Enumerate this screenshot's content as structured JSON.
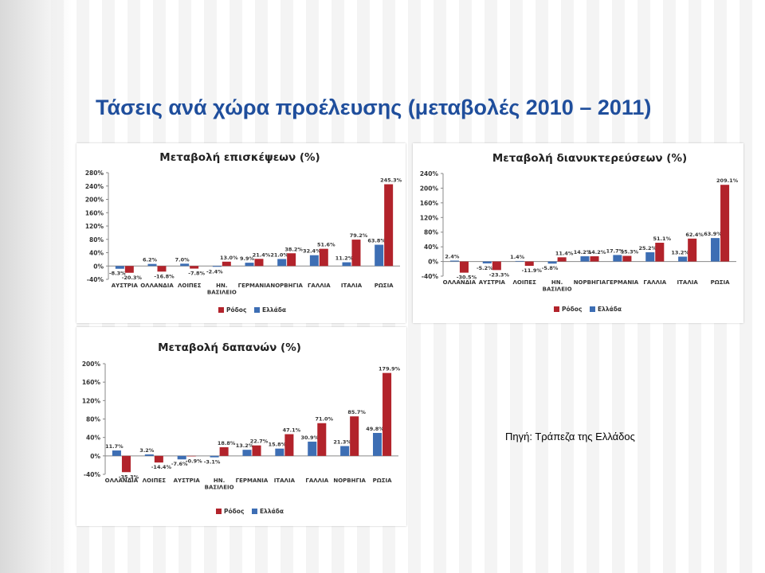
{
  "title": "Τάσεις ανά χώρα προέλευσης (μεταβολές 2010 – 2011)",
  "source": "Πηγή: Τράπεζα της Ελλάδος",
  "colors": {
    "rodos": "#b2232b",
    "ellada": "#3d6eb4",
    "title": "#1f4e9c"
  },
  "chart_data": [
    {
      "type": "bar",
      "title": "Μεταβολή επισκέψεων (%)",
      "categories": [
        "ΑΥΣΤΡΙΑ",
        "ΟΛΛΑΝΔΙΑ",
        "ΛΟΙΠΕΣ",
        "ΗΝ. ΒΑΣΙΛΕΙΟ",
        "ΓΕΡΜΑΝΙΑ",
        "ΝΟΡΒΗΓΙΑ",
        "ΓΑΛΛΙΑ",
        "ΙΤΑΛΙΑ",
        "ΡΩΣΙΑ"
      ],
      "series": [
        {
          "name": "Ελλάδα",
          "values": [
            -8.3,
            6.2,
            7.0,
            -2.4,
            9.9,
            21.0,
            32.4,
            11.2,
            63.8
          ],
          "labels": [
            "-8.3%",
            "6.2%",
            "7.0%",
            "-2.4%",
            "9.9%",
            "21.0%",
            "32.4%",
            "11.2%",
            "63.8%"
          ]
        },
        {
          "name": "Ρόδος",
          "values": [
            -20.3,
            -16.8,
            -7.8,
            13.0,
            21.4,
            38.2,
            51.6,
            79.2,
            245.3
          ],
          "labels": [
            "-20.3%",
            "-16.8%",
            "-7.8%",
            "13.0%",
            "21.4%",
            "38.2%",
            "51.6%",
            "79.2%",
            "245.3%"
          ]
        }
      ],
      "ylim": [
        -40,
        280
      ],
      "yticks": [
        "-40%",
        "0%",
        "40%",
        "80%",
        "120%",
        "160%",
        "200%",
        "240%",
        "280%"
      ],
      "legend": [
        "Ρόδος",
        "Ελλάδα"
      ],
      "legend_position": "bottom",
      "grid": false
    },
    {
      "type": "bar",
      "title": "Μεταβολή διανυκτερεύσεων (%)",
      "categories": [
        "ΟΛΛΑΝΔΙΑ",
        "ΑΥΣΤΡΙΑ",
        "ΛΟΙΠΕΣ",
        "ΗΝ. ΒΑΣΙΛΕΙΟ",
        "ΝΟΡΒΗΓΙΑ",
        "ΓΕΡΜΑΝΙΑ",
        "ΓΑΛΛΙΑ",
        "ΙΤΑΛΙΑ",
        "ΡΩΣΙΑ"
      ],
      "series": [
        {
          "name": "Ελλάδα",
          "values": [
            2.4,
            -5.2,
            1.4,
            -5.8,
            14.2,
            17.7,
            25.2,
            13.2,
            63.9
          ],
          "labels": [
            "2.4%",
            "-5.2%",
            "1.4%",
            "-5.8%",
            "14.2%",
            "17.7%",
            "25.2%",
            "13.2%",
            "63.9%"
          ]
        },
        {
          "name": "Ρόδος",
          "values": [
            -30.5,
            -23.3,
            -11.9,
            11.4,
            14.2,
            15.3,
            51.1,
            62.4,
            209.1
          ],
          "labels": [
            "-30.5%",
            "-23.3%",
            "-11.9%",
            "11.4%",
            "14.2%",
            "15.3%",
            "51.1%",
            "62.4%",
            "209.1%"
          ]
        }
      ],
      "ylim": [
        -40,
        240
      ],
      "yticks": [
        "-40%",
        "0%",
        "40%",
        "80%",
        "120%",
        "160%",
        "200%",
        "240%"
      ],
      "legend": [
        "Ρόδος",
        "Ελλάδα"
      ],
      "legend_position": "bottom",
      "grid": false
    },
    {
      "type": "bar",
      "title": "Μεταβολή δαπανών (%)",
      "categories": [
        "ΟΛΛΑΝΔΙΑ",
        "ΛΟΙΠΕΣ",
        "ΑΥΣΤΡΙΑ",
        "ΗΝ. ΒΑΣΙΛΕΙΟ",
        "ΓΕΡΜΑΝΙΑ",
        "ΙΤΑΛΙΑ",
        "ΓΑΛΛΙΑ",
        "ΝΟΡΒΗΓΙΑ",
        "ΡΩΣΙΑ"
      ],
      "series": [
        {
          "name": "Ελλάδα",
          "values": [
            11.7,
            3.2,
            -7.6,
            -3.1,
            13.2,
            15.8,
            30.9,
            21.3,
            49.8
          ],
          "labels": [
            "11.7%",
            "3.2%",
            "-7.6%",
            "-3.1%",
            "13.2%",
            "15.8%",
            "30.9%",
            "21.3%",
            "49.8%"
          ]
        },
        {
          "name": "Ρόδος",
          "values": [
            -35.3,
            -14.4,
            -0.9,
            18.8,
            22.7,
            47.1,
            71.0,
            85.7,
            179.9
          ],
          "labels": [
            "-35.3%",
            "-14.4%",
            "-0.9%",
            "18.8%",
            "22.7%",
            "47.1%",
            "71.0%",
            "85.7%",
            "179.9%"
          ]
        }
      ],
      "ylim": [
        -40,
        200
      ],
      "yticks": [
        "-40%",
        "0%",
        "40%",
        "80%",
        "120%",
        "160%",
        "200%"
      ],
      "legend": [
        "Ρόδος",
        "Ελλάδα"
      ],
      "legend_position": "bottom",
      "grid": false
    }
  ]
}
